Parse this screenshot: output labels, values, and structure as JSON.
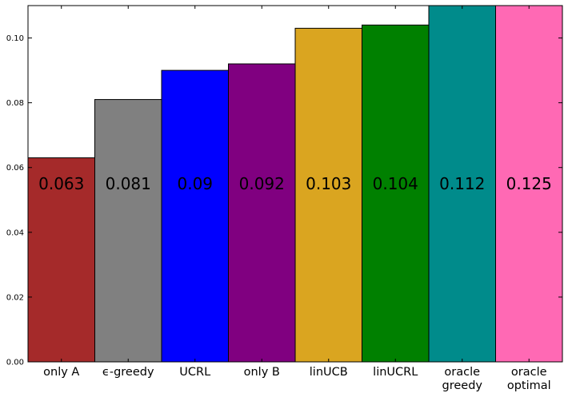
{
  "chart_data": {
    "type": "bar",
    "title": "",
    "xlabel": "",
    "ylabel": "",
    "ylim": [
      0,
      0.11
    ],
    "yticks": [
      "0.00",
      "0.02",
      "0.04",
      "0.06",
      "0.08",
      "0.10"
    ],
    "grid": false,
    "legend": "none",
    "categories": [
      [
        "only A"
      ],
      [
        "ϵ-greedy"
      ],
      [
        "UCRL"
      ],
      [
        "only B"
      ],
      [
        "linUCB"
      ],
      [
        "linUCRL"
      ],
      [
        "oracle",
        "greedy"
      ],
      [
        "oracle",
        "optimal"
      ]
    ],
    "values": [
      0.063,
      0.081,
      0.09,
      0.092,
      0.103,
      0.104,
      0.112,
      0.125
    ],
    "value_labels": [
      "0.063",
      "0.081",
      "0.09",
      "0.092",
      "0.103",
      "0.104",
      "0.112",
      "0.125"
    ],
    "label_y": 0.055,
    "colors": [
      "#a52a2a",
      "#808080",
      "#0000ff",
      "#800080",
      "#daa520",
      "#008000",
      "#008b8b",
      "#ff69b4"
    ]
  }
}
